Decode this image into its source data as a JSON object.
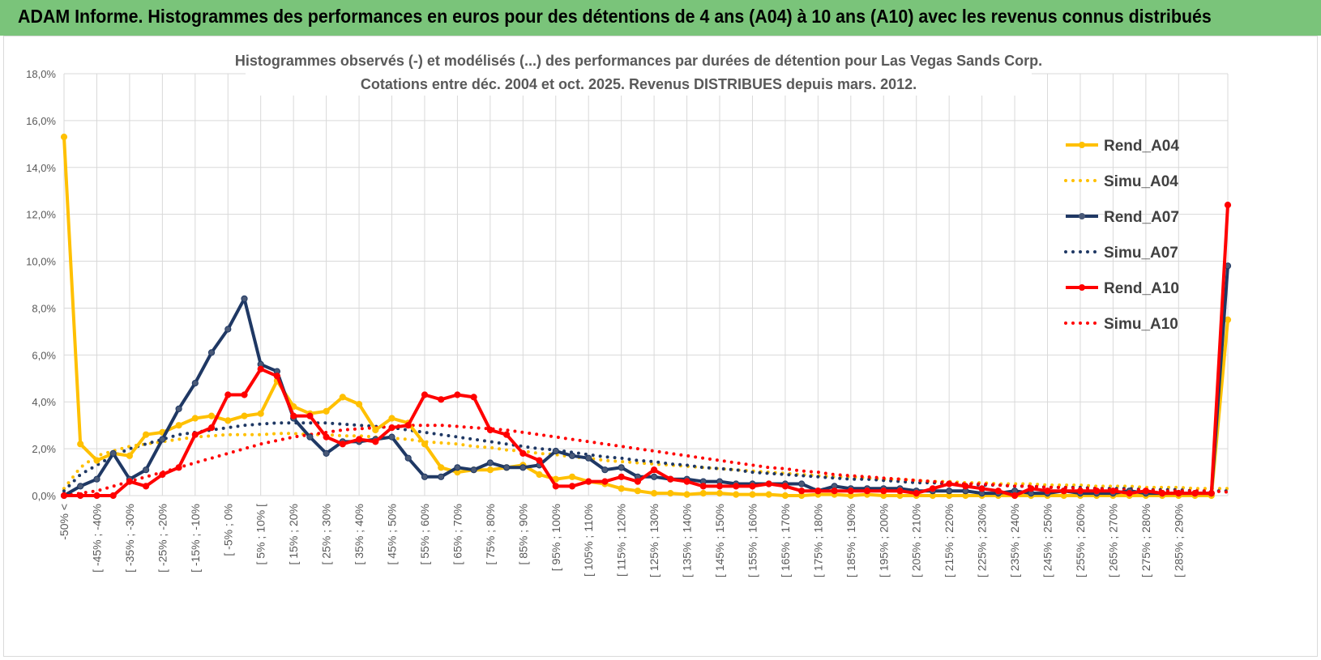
{
  "banner": {
    "title": "ADAM Informe. Histogrammes des performances en euros pour des détentions de 4 ans (A04) à 10 ans (A10) avec les revenus connus distribués"
  },
  "chart_data": {
    "type": "line",
    "title": [
      "Histogrammes observés (-) et modélisés (...) des performances par durées de détention pour Las Vegas Sands Corp.",
      "Cotations entre déc. 2004 et oct. 2025. Revenus DISTRIBUES depuis mars. 2012."
    ],
    "xlabel": "",
    "ylabel": "",
    "ylim": [
      0,
      18
    ],
    "y_ticks": [
      "0,0%",
      "2,0%",
      "4,0%",
      "6,0%",
      "8,0%",
      "10,0%",
      "12,0%",
      "14,0%",
      "16,0%",
      "18,0%"
    ],
    "grid": true,
    "legend_position": "right",
    "x_tick_labels": [
      "-50% <",
      "[ -45% ; -40%",
      "[ -35% ; -30%",
      "[ -25% ; -20%",
      "[ -15% ; -10%",
      "[ -5% ; 0%",
      "[ 5% ; 10% [",
      "[ 15% ; 20%",
      "[ 25% ; 30%",
      "[ 35% ; 40%",
      "[ 45% ; 50%",
      "[ 55% ; 60%",
      "[ 65% ; 70%",
      "[ 75% ; 80%",
      "[ 85% ; 90%",
      "[ 95% ; 100%",
      "[ 105% ; 110%",
      "[ 115% ; 120%",
      "[ 125% ; 130%",
      "[ 135% ; 140%",
      "[ 145% ; 150%",
      "[ 155% ; 160%",
      "[ 165% ; 170%",
      "[ 175% ; 180%",
      "[ 185% ; 190%",
      "[ 195% ; 200%",
      "[ 205% ; 210%",
      "[ 215% ; 220%",
      "[ 225% ; 230%",
      "[ 235% ; 240%",
      "[ 245% ; 250%",
      "[ 255% ; 260%",
      "[ 265% ; 270%",
      "[ 275% ; 280%",
      "[ 285% ; 290%"
    ],
    "series": [
      {
        "name": "Rend_A04",
        "style": "solid",
        "color": "#ffc000",
        "values": [
          15.3,
          2.2,
          1.5,
          1.8,
          1.7,
          2.6,
          2.7,
          3.0,
          3.3,
          3.4,
          3.2,
          3.4,
          3.5,
          4.9,
          3.8,
          3.5,
          3.6,
          4.2,
          3.9,
          2.8,
          3.3,
          3.1,
          2.2,
          1.2,
          1.0,
          1.1,
          1.1,
          1.2,
          1.3,
          0.9,
          0.7,
          0.8,
          0.6,
          0.5,
          0.3,
          0.2,
          0.1,
          0.1,
          0.05,
          0.1,
          0.1,
          0.05,
          0.05,
          0.05,
          0.0,
          0.0,
          0.05,
          0.05,
          0.0,
          0.05,
          0.0,
          0.0,
          0.0,
          0.0,
          0.0,
          0.0,
          0.0,
          0.0,
          0.0,
          0.0,
          0.0,
          0.0,
          0.0,
          0.0,
          0.0,
          0.0,
          0.0,
          0.0,
          0.0,
          0.0,
          0.0,
          7.5
        ]
      },
      {
        "name": "Simu_A04",
        "style": "dotted",
        "color": "#ffc000",
        "values": [
          0.3,
          1.2,
          1.7,
          1.9,
          2.1,
          2.2,
          2.3,
          2.4,
          2.5,
          2.55,
          2.6,
          2.6,
          2.6,
          2.65,
          2.65,
          2.6,
          2.6,
          2.55,
          2.55,
          2.5,
          2.45,
          2.4,
          2.3,
          2.25,
          2.2,
          2.1,
          2.05,
          1.95,
          1.9,
          1.8,
          1.75,
          1.65,
          1.6,
          1.5,
          1.45,
          1.4,
          1.35,
          1.3,
          1.25,
          1.2,
          1.15,
          1.1,
          1.05,
          1.0,
          0.95,
          0.9,
          0.85,
          0.8,
          0.8,
          0.75,
          0.7,
          0.7,
          0.65,
          0.6,
          0.6,
          0.55,
          0.55,
          0.5,
          0.5,
          0.5,
          0.45,
          0.45,
          0.45,
          0.4,
          0.4,
          0.4,
          0.35,
          0.35,
          0.35,
          0.3,
          0.3,
          0.3
        ]
      },
      {
        "name": "Rend_A07",
        "style": "solid",
        "color": "#1f3864",
        "values": [
          0.0,
          0.4,
          0.7,
          1.8,
          0.7,
          1.1,
          2.4,
          3.7,
          4.8,
          6.1,
          7.1,
          8.4,
          5.6,
          5.3,
          3.3,
          2.5,
          1.8,
          2.3,
          2.3,
          2.4,
          2.5,
          1.6,
          0.8,
          0.8,
          1.2,
          1.1,
          1.4,
          1.2,
          1.2,
          1.3,
          1.9,
          1.7,
          1.6,
          1.1,
          1.2,
          0.8,
          0.8,
          0.7,
          0.7,
          0.6,
          0.6,
          0.5,
          0.5,
          0.5,
          0.5,
          0.5,
          0.2,
          0.4,
          0.3,
          0.3,
          0.3,
          0.3,
          0.2,
          0.2,
          0.2,
          0.2,
          0.1,
          0.1,
          0.2,
          0.1,
          0.1,
          0.2,
          0.1,
          0.1,
          0.1,
          0.2,
          0.1,
          0.1,
          0.1,
          0.1,
          0.1,
          9.8
        ]
      },
      {
        "name": "Simu_A07",
        "style": "dotted",
        "color": "#1f3864",
        "values": [
          0.2,
          0.9,
          1.3,
          1.7,
          2.0,
          2.2,
          2.4,
          2.6,
          2.7,
          2.8,
          2.9,
          3.0,
          3.05,
          3.1,
          3.1,
          3.1,
          3.1,
          3.05,
          3.0,
          2.95,
          2.9,
          2.8,
          2.7,
          2.6,
          2.5,
          2.4,
          2.3,
          2.2,
          2.1,
          2.0,
          1.95,
          1.85,
          1.75,
          1.65,
          1.6,
          1.5,
          1.45,
          1.35,
          1.3,
          1.2,
          1.15,
          1.1,
          1.0,
          0.95,
          0.9,
          0.85,
          0.8,
          0.75,
          0.7,
          0.7,
          0.65,
          0.6,
          0.55,
          0.55,
          0.5,
          0.5,
          0.45,
          0.45,
          0.4,
          0.4,
          0.35,
          0.35,
          0.35,
          0.3,
          0.3,
          0.3,
          0.25,
          0.25,
          0.25,
          0.2,
          0.2,
          0.2
        ]
      },
      {
        "name": "Rend_A10",
        "style": "solid",
        "color": "#ff0000",
        "values": [
          0.0,
          0.0,
          0.0,
          0.0,
          0.6,
          0.4,
          0.9,
          1.2,
          2.6,
          2.9,
          4.3,
          4.3,
          5.4,
          5.1,
          3.4,
          3.4,
          2.5,
          2.2,
          2.4,
          2.3,
          2.9,
          3.0,
          4.3,
          4.1,
          4.3,
          4.2,
          2.8,
          2.6,
          1.8,
          1.5,
          0.4,
          0.4,
          0.6,
          0.6,
          0.8,
          0.6,
          1.1,
          0.7,
          0.6,
          0.4,
          0.4,
          0.4,
          0.4,
          0.5,
          0.4,
          0.2,
          0.2,
          0.2,
          0.2,
          0.2,
          0.2,
          0.2,
          0.1,
          0.3,
          0.5,
          0.4,
          0.3,
          0.2,
          0.0,
          0.3,
          0.2,
          0.2,
          0.2,
          0.2,
          0.2,
          0.1,
          0.2,
          0.1,
          0.1,
          0.1,
          0.1,
          12.4
        ]
      },
      {
        "name": "Simu_A10",
        "style": "dotted",
        "color": "#ff0000",
        "values": [
          0.0,
          0.1,
          0.2,
          0.4,
          0.6,
          0.8,
          1.0,
          1.2,
          1.4,
          1.6,
          1.8,
          2.0,
          2.2,
          2.35,
          2.5,
          2.6,
          2.7,
          2.8,
          2.85,
          2.9,
          2.95,
          3.0,
          3.0,
          3.0,
          2.95,
          2.9,
          2.85,
          2.8,
          2.7,
          2.6,
          2.5,
          2.4,
          2.3,
          2.2,
          2.1,
          2.0,
          1.9,
          1.8,
          1.7,
          1.6,
          1.5,
          1.4,
          1.3,
          1.2,
          1.15,
          1.05,
          1.0,
          0.9,
          0.85,
          0.8,
          0.75,
          0.7,
          0.65,
          0.6,
          0.55,
          0.5,
          0.5,
          0.45,
          0.4,
          0.4,
          0.35,
          0.35,
          0.3,
          0.3,
          0.25,
          0.25,
          0.25,
          0.2,
          0.2,
          0.2,
          0.2,
          0.15
        ]
      }
    ]
  }
}
